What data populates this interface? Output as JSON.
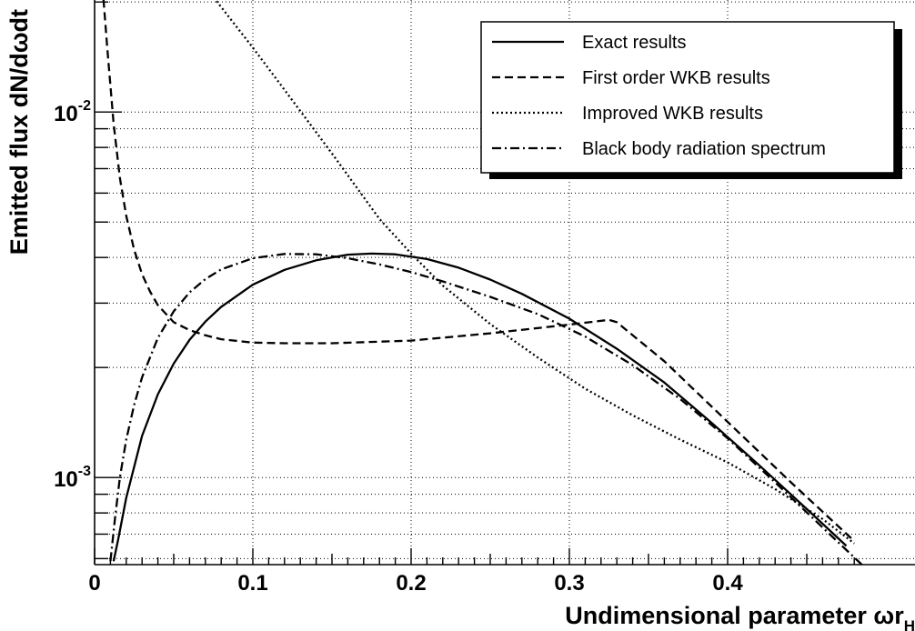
{
  "chart_data": {
    "type": "line",
    "xlabel": "Undimensional parameter ",
    "xlabel_symbol": "ωr",
    "xlabel_subscript": "H",
    "ylabel": "Emitted flux dN/dωdt",
    "log_y": true,
    "grid": true,
    "xlim": [
      0,
      0.49
    ],
    "ylim": [
      0.00059,
      0.022
    ],
    "x_tick_labels": [
      {
        "v": 0,
        "label": "0"
      },
      {
        "v": 0.1,
        "label": "0.1"
      },
      {
        "v": 0.2,
        "label": "0.2"
      },
      {
        "v": 0.3,
        "label": "0.3"
      },
      {
        "v": 0.4,
        "label": "0.4"
      }
    ],
    "y_tick_labels": [
      {
        "v": 0.01,
        "base": "10",
        "exp": "-2"
      },
      {
        "v": 0.001,
        "base": "10",
        "exp": "-3"
      }
    ],
    "legend_position": "top-right",
    "series": [
      {
        "name": "Exact results",
        "style": "solid",
        "x": [
          0.012,
          0.015,
          0.02,
          0.03,
          0.04,
          0.05,
          0.06,
          0.07,
          0.08,
          0.1,
          0.12,
          0.14,
          0.16,
          0.175,
          0.19,
          0.21,
          0.23,
          0.25,
          0.27,
          0.3,
          0.33,
          0.36,
          0.39,
          0.42,
          0.45,
          0.475
        ],
        "y": [
          0.00059,
          0.00068,
          0.00088,
          0.0013,
          0.00169,
          0.00205,
          0.00238,
          0.00267,
          0.00293,
          0.00337,
          0.0037,
          0.00393,
          0.00407,
          0.0041,
          0.00408,
          0.00396,
          0.00375,
          0.00348,
          0.00318,
          0.00272,
          0.00225,
          0.00182,
          0.00141,
          0.00108,
          0.00082,
          0.00065
        ]
      },
      {
        "name": "First order WKB results",
        "style": "dashed",
        "x": [
          0.005,
          0.008,
          0.012,
          0.016,
          0.02,
          0.025,
          0.03,
          0.035,
          0.04,
          0.05,
          0.06,
          0.07,
          0.08,
          0.1,
          0.12,
          0.15,
          0.2,
          0.25,
          0.3,
          0.325,
          0.33,
          0.36,
          0.4,
          0.44,
          0.48
        ],
        "y": [
          0.022,
          0.015,
          0.0093,
          0.0066,
          0.0052,
          0.0042,
          0.0036,
          0.00323,
          0.00296,
          0.00266,
          0.00253,
          0.00245,
          0.00239,
          0.00234,
          0.00233,
          0.00233,
          0.00237,
          0.00248,
          0.00262,
          0.0027,
          0.00266,
          0.00208,
          0.00142,
          0.00097,
          0.00067
        ]
      },
      {
        "name": "Improved WKB results",
        "style": "dotted",
        "x": [
          0.07,
          0.1,
          0.12,
          0.15,
          0.18,
          0.2,
          0.22,
          0.25,
          0.28,
          0.31,
          0.34,
          0.37,
          0.4,
          0.43,
          0.46,
          0.48
        ],
        "y": [
          0.022,
          0.015,
          0.0115,
          0.0077,
          0.0051,
          0.0041,
          0.00335,
          0.00263,
          0.00213,
          0.00175,
          0.00148,
          0.00127,
          0.0011,
          0.00093,
          0.00077,
          0.00066
        ]
      },
      {
        "name": "Black body radiation spectrum",
        "style": "dashdot",
        "x": [
          0.01,
          0.013,
          0.016,
          0.02,
          0.025,
          0.03,
          0.04,
          0.05,
          0.06,
          0.07,
          0.08,
          0.1,
          0.12,
          0.14,
          0.16,
          0.18,
          0.2,
          0.22,
          0.25,
          0.28,
          0.31,
          0.34,
          0.37,
          0.4,
          0.43,
          0.46,
          0.49
        ],
        "y": [
          0.00059,
          0.00078,
          0.001,
          0.00127,
          0.00158,
          0.00188,
          0.00241,
          0.00285,
          0.00321,
          0.00349,
          0.00371,
          0.00398,
          0.00409,
          0.00408,
          0.00398,
          0.00383,
          0.00365,
          0.00344,
          0.00312,
          0.0028,
          0.00243,
          0.00203,
          0.00164,
          0.00128,
          0.00097,
          0.00073,
          0.00055
        ]
      }
    ]
  }
}
